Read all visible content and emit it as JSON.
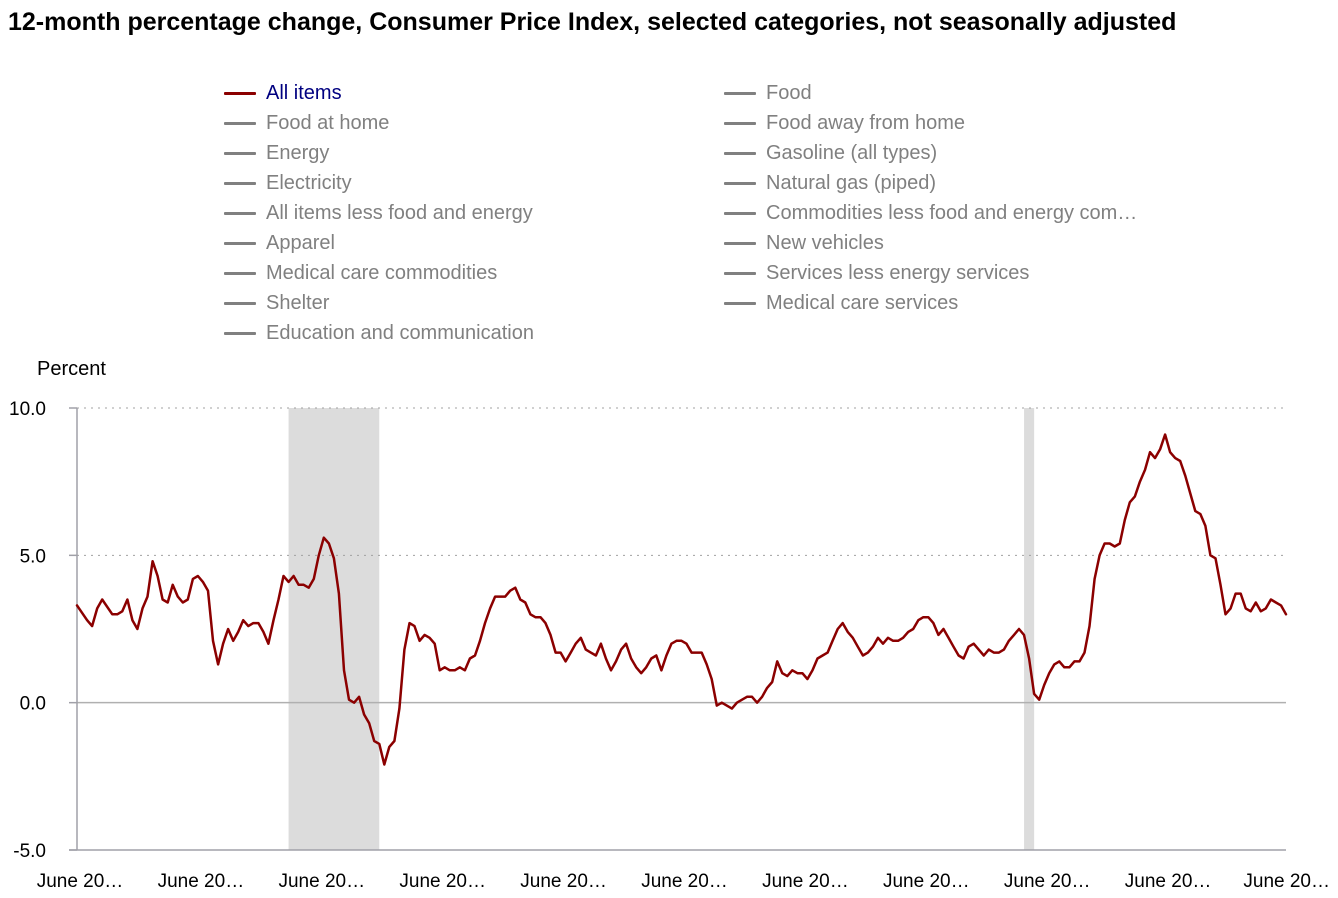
{
  "title": "12-month percentage change, Consumer Price Index, selected categories, not seasonally adjusted",
  "colors": {
    "active_series": "#8b0000",
    "inactive_series": "#808080",
    "active_label": "#000080",
    "recession": "#dcdcdc"
  },
  "legend": {
    "left": [
      {
        "label": "All items",
        "active": true
      },
      {
        "label": "Food at home",
        "active": false
      },
      {
        "label": "Energy",
        "active": false
      },
      {
        "label": "Electricity",
        "active": false
      },
      {
        "label": "All items less food and energy",
        "active": false
      },
      {
        "label": "Apparel",
        "active": false
      },
      {
        "label": "Medical care commodities",
        "active": false
      },
      {
        "label": "Shelter",
        "active": false
      },
      {
        "label": "Education and communication",
        "active": false
      }
    ],
    "right": [
      {
        "label": "Food",
        "active": false
      },
      {
        "label": "Food away from home",
        "active": false
      },
      {
        "label": "Gasoline (all types)",
        "active": false
      },
      {
        "label": "Natural gas (piped)",
        "active": false
      },
      {
        "label": "Commodities less food and energy com…",
        "active": false
      },
      {
        "label": "New vehicles",
        "active": false
      },
      {
        "label": "Services less energy services",
        "active": false
      },
      {
        "label": "Medical care services",
        "active": false
      }
    ]
  },
  "chart_data": {
    "type": "line",
    "ylabel": "Percent",
    "ylim": [
      -5,
      10
    ],
    "yticks": [
      "10.0",
      "5.0",
      "0.0",
      "-5.0"
    ],
    "ytick_values": [
      10,
      5,
      0,
      -5
    ],
    "xlim": [
      0,
      240
    ],
    "xticks": [
      {
        "label": "June 20…",
        "x": 0
      },
      {
        "label": "June 20…",
        "x": 24
      },
      {
        "label": "June 20…",
        "x": 48
      },
      {
        "label": "June 20…",
        "x": 72
      },
      {
        "label": "June 20…",
        "x": 96
      },
      {
        "label": "June 20…",
        "x": 120
      },
      {
        "label": "June 20…",
        "x": 144
      },
      {
        "label": "June 20…",
        "x": 168
      },
      {
        "label": "June 20…",
        "x": 192
      },
      {
        "label": "June 20…",
        "x": 216
      },
      {
        "label": "June 20…",
        "x": 240
      }
    ],
    "grid": "horizontal dotted",
    "recession_bands": [
      [
        42,
        60
      ],
      [
        188,
        190
      ]
    ],
    "series": [
      {
        "name": "All items",
        "x": [
          0,
          2,
          3,
          4,
          5,
          7,
          8,
          9,
          10,
          11,
          12,
          13,
          14,
          15,
          16,
          17,
          18,
          19,
          20,
          21,
          22,
          23,
          24,
          25,
          26,
          27,
          28,
          29,
          30,
          31,
          32,
          33,
          34,
          35,
          36,
          37,
          38,
          39,
          40,
          41,
          42,
          43,
          44,
          45,
          46,
          47,
          48,
          49,
          50,
          51,
          52,
          53,
          54,
          55,
          56,
          57,
          58,
          59,
          60,
          61,
          62,
          63,
          64,
          65,
          66,
          67,
          68,
          69,
          70,
          71,
          72,
          73,
          74,
          75,
          76,
          77,
          78,
          79,
          80,
          81,
          82,
          83,
          84,
          85,
          86,
          87,
          88,
          89,
          90,
          91,
          92,
          93,
          94,
          95,
          96,
          97,
          98,
          99,
          100,
          101,
          102,
          103,
          104,
          105,
          106,
          107,
          108,
          109,
          110,
          111,
          112,
          113,
          114,
          115,
          116,
          117,
          118,
          119,
          120,
          121,
          122,
          123,
          124,
          125,
          126,
          127,
          128,
          129,
          130,
          131,
          132,
          133,
          134,
          135,
          136,
          137,
          138,
          139,
          140,
          141,
          142,
          143,
          144,
          145,
          146,
          147,
          148,
          149,
          150,
          151,
          152,
          153,
          154,
          155,
          156,
          157,
          158,
          159,
          160,
          161,
          162,
          163,
          164,
          165,
          166,
          167,
          168,
          169,
          170,
          171,
          172,
          173,
          174,
          175,
          176,
          177,
          178,
          179,
          180,
          181,
          182,
          183,
          184,
          185,
          186,
          187,
          188,
          189,
          190,
          191,
          192,
          193,
          194,
          195,
          196,
          197,
          198,
          199,
          200,
          201,
          202,
          203,
          204,
          205,
          206,
          207,
          208,
          209,
          210,
          211,
          212,
          213,
          214,
          215,
          216,
          217,
          218,
          219,
          220,
          221,
          222,
          223,
          224,
          225,
          226,
          227,
          228,
          229,
          230,
          231,
          232,
          233,
          234,
          235,
          236,
          237,
          238,
          239,
          240
        ],
        "values": [
          3.3,
          2.8,
          2.6,
          3.2,
          3.5,
          3.0,
          3.0,
          3.1,
          3.5,
          2.8,
          2.5,
          3.2,
          3.6,
          4.8,
          4.3,
          3.5,
          3.4,
          4.0,
          3.6,
          3.4,
          3.5,
          4.2,
          4.3,
          4.1,
          3.8,
          2.1,
          1.3,
          2.0,
          2.5,
          2.1,
          2.4,
          2.8,
          2.6,
          2.7,
          2.7,
          2.4,
          2.0,
          2.8,
          3.5,
          4.3,
          4.1,
          4.3,
          4.0,
          4.0,
          3.9,
          4.2,
          5.0,
          5.6,
          5.4,
          4.9,
          3.7,
          1.1,
          0.1,
          0.0,
          0.2,
          -0.4,
          -0.7,
          -1.3,
          -1.4,
          -2.1,
          -1.5,
          -1.3,
          -0.2,
          1.8,
          2.7,
          2.6,
          2.1,
          2.3,
          2.2,
          2.0,
          1.1,
          1.2,
          1.1,
          1.1,
          1.2,
          1.1,
          1.5,
          1.6,
          2.1,
          2.7,
          3.2,
          3.6,
          3.6,
          3.6,
          3.8,
          3.9,
          3.5,
          3.4,
          3.0,
          2.9,
          2.9,
          2.7,
          2.3,
          1.7,
          1.7,
          1.4,
          1.7,
          2.0,
          2.2,
          1.8,
          1.7,
          1.6,
          2.0,
          1.5,
          1.1,
          1.4,
          1.8,
          2.0,
          1.5,
          1.2,
          1.0,
          1.2,
          1.5,
          1.6,
          1.1,
          1.6,
          2.0,
          2.1,
          2.1,
          2.0,
          1.7,
          1.7,
          1.7,
          1.3,
          0.8,
          -0.1,
          0.0,
          -0.1,
          -0.2,
          0.0,
          0.1,
          0.2,
          0.2,
          0.0,
          0.2,
          0.5,
          0.7,
          1.4,
          1.0,
          0.9,
          1.1,
          1.0,
          1.0,
          0.8,
          1.1,
          1.5,
          1.6,
          1.7,
          2.1,
          2.5,
          2.7,
          2.4,
          2.2,
          1.9,
          1.6,
          1.7,
          1.9,
          2.2,
          2.0,
          2.2,
          2.1,
          2.1,
          2.2,
          2.4,
          2.5,
          2.8,
          2.9,
          2.9,
          2.7,
          2.3,
          2.5,
          2.2,
          1.9,
          1.6,
          1.5,
          1.9,
          2.0,
          1.8,
          1.6,
          1.8,
          1.7,
          1.7,
          1.8,
          2.1,
          2.3,
          2.5,
          2.3,
          1.5,
          0.3,
          0.1,
          0.6,
          1.0,
          1.3,
          1.4,
          1.2,
          1.2,
          1.4,
          1.4,
          1.7,
          2.6,
          4.2,
          5.0,
          5.4,
          5.4,
          5.3,
          5.4,
          6.2,
          6.8,
          7.0,
          7.5,
          7.9,
          8.5,
          8.3,
          8.6,
          9.1,
          8.5,
          8.3,
          8.2,
          7.7,
          7.1,
          6.5,
          6.4,
          6.0,
          5.0,
          4.9,
          4.0,
          3.0,
          3.2,
          3.7,
          3.7,
          3.2,
          3.1,
          3.4,
          3.1,
          3.2,
          3.5,
          3.4,
          3.3,
          3.0
        ]
      }
    ]
  }
}
